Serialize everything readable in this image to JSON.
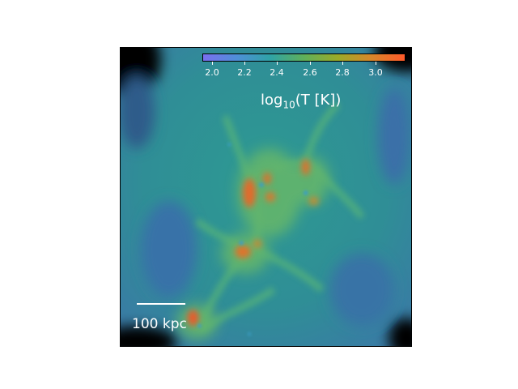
{
  "image": {
    "description_colors": {
      "background": "#2f8f94",
      "void": "#000000",
      "filament": "#52b07a",
      "hot": "#f26a2b",
      "cold": "#3a78b5"
    }
  },
  "colorbar": {
    "label_prefix": "log",
    "label_sub": "10",
    "label_suffix": "(T [K])",
    "ticks": [
      "2.0",
      "2.2",
      "2.4",
      "2.6",
      "2.8",
      "3.0"
    ],
    "gradient": [
      "#7a6ff0",
      "#4f8fd8",
      "#2fa3a6",
      "#5fb05a",
      "#9aab2a",
      "#d8872a",
      "#ff5a2a"
    ]
  },
  "scalebar": {
    "label": "100 kpc"
  }
}
